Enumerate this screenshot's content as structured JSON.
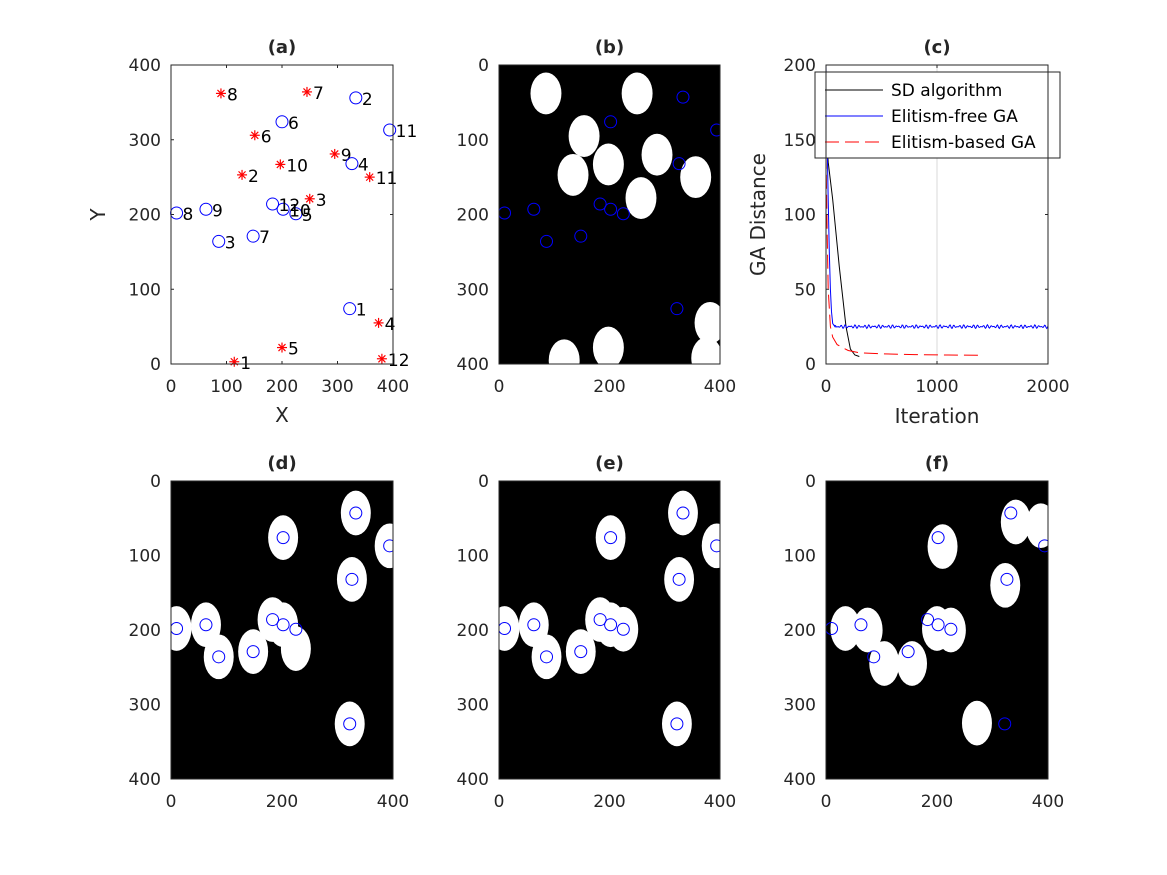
{
  "chart_data": [
    {
      "id": "a",
      "type": "scatter",
      "title": "(a)",
      "xlabel": "X",
      "ylabel": "Y",
      "xlim": [
        0,
        400
      ],
      "ylim": [
        0,
        400
      ],
      "xticks": [
        "0",
        "100",
        "200",
        "300",
        "400"
      ],
      "yticks": [
        "0",
        "100",
        "200",
        "300",
        "400"
      ],
      "colors": {
        "circle": "#0000ff",
        "star": "#ff0000"
      },
      "circles": [
        {
          "label": "1",
          "x": 322,
          "y": 74
        },
        {
          "label": "2",
          "x": 333,
          "y": 356
        },
        {
          "label": "3",
          "x": 86,
          "y": 164
        },
        {
          "label": "4",
          "x": 326,
          "y": 268
        },
        {
          "label": "5",
          "x": 225,
          "y": 201
        },
        {
          "label": "6",
          "x": 200,
          "y": 324
        },
        {
          "label": "7",
          "x": 148,
          "y": 171
        },
        {
          "label": "8",
          "x": 10,
          "y": 202
        },
        {
          "label": "9",
          "x": 63,
          "y": 207
        },
        {
          "label": "10",
          "x": 202,
          "y": 207
        },
        {
          "label": "11",
          "x": 394,
          "y": 313
        },
        {
          "label": "12",
          "x": 183,
          "y": 214
        }
      ],
      "stars": [
        {
          "label": "1",
          "x": 114,
          "y": 3
        },
        {
          "label": "2",
          "x": 128,
          "y": 253
        },
        {
          "label": "3",
          "x": 250,
          "y": 221
        },
        {
          "label": "4",
          "x": 374,
          "y": 55
        },
        {
          "label": "5",
          "x": 200,
          "y": 22
        },
        {
          "label": "6",
          "x": 151,
          "y": 306
        },
        {
          "label": "7",
          "x": 245,
          "y": 364
        },
        {
          "label": "8",
          "x": 90,
          "y": 362
        },
        {
          "label": "9",
          "x": 295,
          "y": 281
        },
        {
          "label": "10",
          "x": 197,
          "y": 267
        },
        {
          "label": "11",
          "x": 358,
          "y": 250
        },
        {
          "label": "12",
          "x": 380,
          "y": 7
        }
      ]
    },
    {
      "id": "b",
      "type": "image",
      "title": "(b)",
      "xlim": [
        0,
        400
      ],
      "ylim": [
        400,
        0
      ],
      "xticks": [
        "0",
        "200",
        "400"
      ],
      "yticks": [
        "0",
        "100",
        "200",
        "300",
        "400"
      ],
      "background": "#000000",
      "blob_color": "#ffffff",
      "marker_color": "#0000ff",
      "blobs": [
        {
          "x": 85,
          "y": 38,
          "rx": 28,
          "ry": 28
        },
        {
          "x": 250,
          "y": 38,
          "rx": 28,
          "ry": 28
        },
        {
          "x": 154,
          "y": 95,
          "rx": 28,
          "ry": 28
        },
        {
          "x": 286,
          "y": 120,
          "rx": 28,
          "ry": 28
        },
        {
          "x": 198,
          "y": 133,
          "rx": 28,
          "ry": 28
        },
        {
          "x": 356,
          "y": 150,
          "rx": 28,
          "ry": 28
        },
        {
          "x": 134,
          "y": 147,
          "rx": 28,
          "ry": 28
        },
        {
          "x": 257,
          "y": 178,
          "rx": 28,
          "ry": 28
        },
        {
          "x": 382,
          "y": 345,
          "rx": 28,
          "ry": 28
        },
        {
          "x": 198,
          "y": 378,
          "rx": 28,
          "ry": 28
        },
        {
          "x": 118,
          "y": 395,
          "rx": 28,
          "ry": 28
        },
        {
          "x": 376,
          "y": 392,
          "rx": 28,
          "ry": 28
        }
      ],
      "markers": [
        {
          "x": 333,
          "y": 43
        },
        {
          "x": 202,
          "y": 76
        },
        {
          "x": 394,
          "y": 87
        },
        {
          "x": 326,
          "y": 132
        },
        {
          "x": 183,
          "y": 186
        },
        {
          "x": 202,
          "y": 193
        },
        {
          "x": 225,
          "y": 199
        },
        {
          "x": 10,
          "y": 198
        },
        {
          "x": 63,
          "y": 193
        },
        {
          "x": 86,
          "y": 236
        },
        {
          "x": 148,
          "y": 229
        },
        {
          "x": 322,
          "y": 326
        }
      ]
    },
    {
      "id": "c",
      "type": "line",
      "title": "(c)",
      "xlabel": "Iteration",
      "ylabel": "GA Distance",
      "xlim": [
        0,
        2000
      ],
      "ylim": [
        0,
        200
      ],
      "xticks": [
        "0",
        "1000",
        "2000"
      ],
      "yticks": [
        "0",
        "50",
        "100",
        "150",
        "200"
      ],
      "legend_position": "top-right",
      "series": [
        {
          "name": "SD algorithm",
          "color": "#000000",
          "style": "solid",
          "x": [
            0,
            20,
            60,
            120,
            180,
            220,
            260,
            300
          ],
          "y": [
            160,
            135,
            110,
            65,
            25,
            10,
            6,
            5
          ]
        },
        {
          "name": "Elitism-free GA",
          "color": "#0000ff",
          "style": "solid",
          "x": [
            0,
            10,
            20,
            30,
            40,
            50,
            60,
            80,
            2000
          ],
          "y": [
            200,
            150,
            110,
            75,
            50,
            35,
            27,
            25,
            25
          ]
        },
        {
          "name": "Elitism-based GA",
          "color": "#ff0000",
          "style": "dashed",
          "x": [
            0,
            10,
            20,
            40,
            60,
            100,
            150,
            200,
            300,
            500,
            800,
            1100,
            1400
          ],
          "y": [
            140,
            90,
            50,
            25,
            18,
            13,
            11,
            9,
            7.5,
            6.8,
            6.3,
            6.0,
            5.8
          ]
        }
      ]
    },
    {
      "id": "d",
      "type": "image",
      "title": "(d)",
      "xlim": [
        0,
        400
      ],
      "ylim": [
        400,
        0
      ],
      "xticks": [
        "0",
        "200",
        "400"
      ],
      "yticks": [
        "0",
        "100",
        "200",
        "300",
        "400"
      ],
      "background": "#000000",
      "blob_color": "#ffffff",
      "marker_color": "#0000ff",
      "blobs": [
        {
          "x": 333,
          "y": 43,
          "rx": 27,
          "ry": 30
        },
        {
          "x": 202,
          "y": 76,
          "rx": 27,
          "ry": 30
        },
        {
          "x": 394,
          "y": 87,
          "rx": 27,
          "ry": 30
        },
        {
          "x": 326,
          "y": 132,
          "rx": 27,
          "ry": 30
        },
        {
          "x": 183,
          "y": 186,
          "rx": 27,
          "ry": 30
        },
        {
          "x": 202,
          "y": 193,
          "rx": 27,
          "ry": 30
        },
        {
          "x": 225,
          "y": 225,
          "rx": 27,
          "ry": 30
        },
        {
          "x": 10,
          "y": 198,
          "rx": 27,
          "ry": 30
        },
        {
          "x": 63,
          "y": 193,
          "rx": 27,
          "ry": 30
        },
        {
          "x": 86,
          "y": 236,
          "rx": 27,
          "ry": 30
        },
        {
          "x": 148,
          "y": 229,
          "rx": 27,
          "ry": 30
        },
        {
          "x": 322,
          "y": 326,
          "rx": 27,
          "ry": 30
        }
      ],
      "markers": [
        {
          "x": 333,
          "y": 43
        },
        {
          "x": 202,
          "y": 76
        },
        {
          "x": 394,
          "y": 87
        },
        {
          "x": 326,
          "y": 132
        },
        {
          "x": 183,
          "y": 186
        },
        {
          "x": 202,
          "y": 193
        },
        {
          "x": 225,
          "y": 199
        },
        {
          "x": 10,
          "y": 198
        },
        {
          "x": 63,
          "y": 193
        },
        {
          "x": 86,
          "y": 236
        },
        {
          "x": 148,
          "y": 229
        },
        {
          "x": 322,
          "y": 326
        }
      ]
    },
    {
      "id": "e",
      "type": "image",
      "title": "(e)",
      "xlim": [
        0,
        400
      ],
      "ylim": [
        400,
        0
      ],
      "xticks": [
        "0",
        "200",
        "400"
      ],
      "yticks": [
        "0",
        "100",
        "200",
        "300",
        "400"
      ],
      "background": "#000000",
      "blob_color": "#ffffff",
      "marker_color": "#0000ff",
      "blobs": [
        {
          "x": 333,
          "y": 43,
          "rx": 27,
          "ry": 30
        },
        {
          "x": 202,
          "y": 76,
          "rx": 27,
          "ry": 30
        },
        {
          "x": 394,
          "y": 87,
          "rx": 27,
          "ry": 30
        },
        {
          "x": 326,
          "y": 132,
          "rx": 27,
          "ry": 30
        },
        {
          "x": 183,
          "y": 186,
          "rx": 27,
          "ry": 30
        },
        {
          "x": 202,
          "y": 193,
          "rx": 27,
          "ry": 30
        },
        {
          "x": 225,
          "y": 199,
          "rx": 27,
          "ry": 30
        },
        {
          "x": 10,
          "y": 198,
          "rx": 27,
          "ry": 30
        },
        {
          "x": 63,
          "y": 193,
          "rx": 27,
          "ry": 30
        },
        {
          "x": 86,
          "y": 236,
          "rx": 27,
          "ry": 30
        },
        {
          "x": 148,
          "y": 229,
          "rx": 27,
          "ry": 30
        },
        {
          "x": 322,
          "y": 326,
          "rx": 27,
          "ry": 30
        }
      ],
      "markers": [
        {
          "x": 333,
          "y": 43
        },
        {
          "x": 202,
          "y": 76
        },
        {
          "x": 394,
          "y": 87
        },
        {
          "x": 326,
          "y": 132
        },
        {
          "x": 183,
          "y": 186
        },
        {
          "x": 202,
          "y": 193
        },
        {
          "x": 225,
          "y": 199
        },
        {
          "x": 10,
          "y": 198
        },
        {
          "x": 63,
          "y": 193
        },
        {
          "x": 86,
          "y": 236
        },
        {
          "x": 148,
          "y": 229
        },
        {
          "x": 322,
          "y": 326
        }
      ]
    },
    {
      "id": "f",
      "type": "image",
      "title": "(f)",
      "xlim": [
        0,
        400
      ],
      "ylim": [
        400,
        0
      ],
      "xticks": [
        "0",
        "200",
        "400"
      ],
      "yticks": [
        "0",
        "100",
        "200",
        "300",
        "400"
      ],
      "background": "#000000",
      "blob_color": "#ffffff",
      "marker_color": "#0000ff",
      "blobs": [
        {
          "x": 342,
          "y": 55,
          "rx": 27,
          "ry": 30
        },
        {
          "x": 387,
          "y": 60,
          "rx": 27,
          "ry": 30
        },
        {
          "x": 210,
          "y": 88,
          "rx": 27,
          "ry": 30
        },
        {
          "x": 323,
          "y": 140,
          "rx": 27,
          "ry": 30
        },
        {
          "x": 35,
          "y": 198,
          "rx": 27,
          "ry": 30
        },
        {
          "x": 75,
          "y": 200,
          "rx": 27,
          "ry": 30
        },
        {
          "x": 200,
          "y": 198,
          "rx": 27,
          "ry": 30
        },
        {
          "x": 225,
          "y": 200,
          "rx": 27,
          "ry": 30
        },
        {
          "x": 105,
          "y": 245,
          "rx": 27,
          "ry": 30
        },
        {
          "x": 155,
          "y": 245,
          "rx": 27,
          "ry": 30
        },
        {
          "x": 272,
          "y": 325,
          "rx": 27,
          "ry": 30
        }
      ],
      "markers": [
        {
          "x": 333,
          "y": 43
        },
        {
          "x": 202,
          "y": 76
        },
        {
          "x": 394,
          "y": 87
        },
        {
          "x": 326,
          "y": 132
        },
        {
          "x": 183,
          "y": 186
        },
        {
          "x": 202,
          "y": 193
        },
        {
          "x": 225,
          "y": 199
        },
        {
          "x": 10,
          "y": 198
        },
        {
          "x": 63,
          "y": 193
        },
        {
          "x": 86,
          "y": 236
        },
        {
          "x": 148,
          "y": 229
        },
        {
          "x": 322,
          "y": 326
        }
      ]
    }
  ]
}
